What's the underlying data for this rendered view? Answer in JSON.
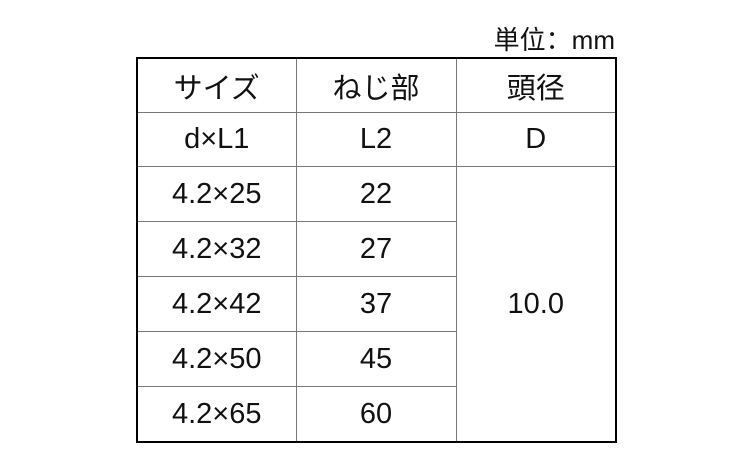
{
  "unit_label": "単位：mm",
  "headers": [
    "サイズ",
    "ねじ部",
    "頭径"
  ],
  "subheaders": [
    "d×L1",
    "L2",
    "D"
  ],
  "rows": [
    {
      "size": "4.2×25",
      "thread": "22"
    },
    {
      "size": "4.2×32",
      "thread": "27"
    },
    {
      "size": "4.2×42",
      "thread": "37"
    },
    {
      "size": "4.2×50",
      "thread": "45"
    },
    {
      "size": "4.2×65",
      "thread": "60"
    }
  ],
  "head_diameter": "10.0"
}
